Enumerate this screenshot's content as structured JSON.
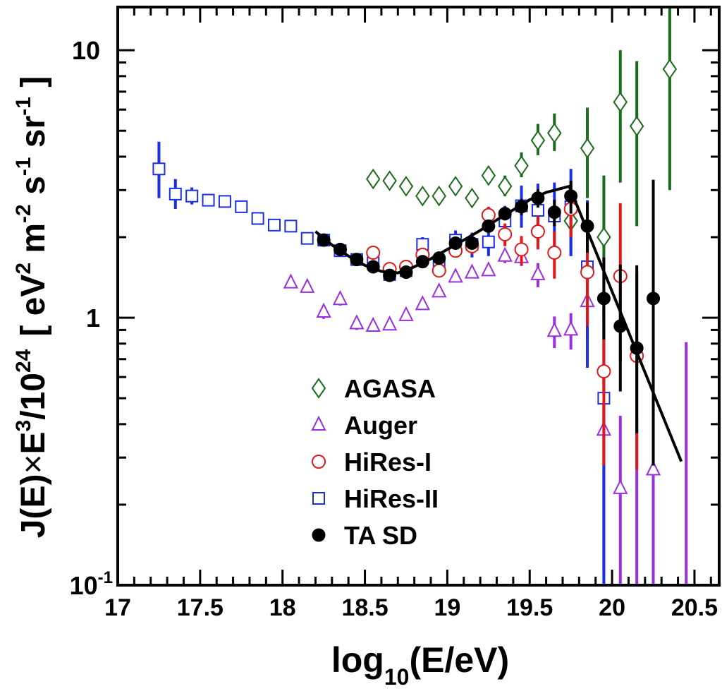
{
  "chart_data": {
    "type": "scatter",
    "x_tick_labels": [
      "17",
      "17.5",
      "18",
      "18.5",
      "19",
      "19.5",
      "20",
      "20.5"
    ],
    "x_ticks": [
      17,
      17.5,
      18,
      18.5,
      19,
      19.5,
      20,
      20.5
    ],
    "y_tick_labels": {
      "t10": "10",
      "t1": "1",
      "t01_base": "10",
      "t01_exp": "-1"
    },
    "y_ticks": [
      0.1,
      1,
      10
    ],
    "xlabel": {
      "base": "log",
      "sub": "10",
      "rest": "(E/eV)"
    },
    "ylabel": {
      "p1": "J(E)",
      "times": "×",
      "p2": "E",
      "p2_sup": "3",
      "p3": "/10",
      "p3_sup": "24",
      "p4": "[ eV",
      "p4_sup": "2",
      "p5": " m",
      "p5_sup": "-2",
      "p6": " s",
      "p6_sup": "-1",
      "p7": " sr",
      "p7_sup": "-1",
      "p8": " ]"
    },
    "xlim": [
      17,
      20.65
    ],
    "ylim": [
      0.1,
      14.5
    ],
    "yscale": "log",
    "legend_position": "lower-middle",
    "series": [
      {
        "name": "AGASA",
        "marker": "diamond",
        "filled": false,
        "color": "#1a6b1a",
        "x": [
          18.55,
          18.65,
          18.75,
          18.85,
          18.95,
          19.05,
          19.15,
          19.25,
          19.35,
          19.45,
          19.55,
          19.65,
          19.75,
          19.85,
          19.95,
          20.05,
          20.15,
          20.35
        ],
        "y": [
          3.3,
          3.25,
          3.1,
          2.85,
          2.85,
          3.1,
          2.8,
          3.4,
          3.1,
          3.7,
          4.6,
          4.9,
          2.3,
          4.3,
          2.0,
          6.4,
          5.2,
          8.5
        ],
        "err_low": [
          0.05,
          0.05,
          0.05,
          0.05,
          0.05,
          0.05,
          0.1,
          0.2,
          0.25,
          0.35,
          0.55,
          0.7,
          0.6,
          1.5,
          1.0,
          3.2,
          3.0,
          5.5
        ],
        "err_high": [
          0.05,
          0.05,
          0.05,
          0.05,
          0.05,
          0.05,
          0.1,
          0.25,
          0.3,
          0.45,
          0.7,
          0.9,
          0.8,
          1.8,
          1.4,
          3.6,
          3.9,
          7.0
        ]
      },
      {
        "name": "Auger",
        "marker": "triangle",
        "filled": false,
        "color": "#9a2ee0",
        "x": [
          18.05,
          18.15,
          18.25,
          18.35,
          18.45,
          18.55,
          18.65,
          18.75,
          18.85,
          18.95,
          19.05,
          19.15,
          19.25,
          19.35,
          19.45,
          19.55,
          19.65,
          19.75,
          19.85,
          19.95,
          20.05,
          20.15,
          20.25,
          20.35
        ],
        "y": [
          1.35,
          1.3,
          1.05,
          1.17,
          0.95,
          0.93,
          0.94,
          1.02,
          1.12,
          1.25,
          1.42,
          1.47,
          1.5,
          1.7,
          1.68,
          1.45,
          0.89,
          0.9,
          1.15,
          0.38,
          0.23,
          null,
          0.27,
          null
        ],
        "err_low": [
          0.05,
          0.05,
          0.06,
          0.06,
          0.05,
          0.04,
          0.04,
          0.04,
          0.05,
          0.05,
          0.06,
          0.06,
          0.07,
          0.1,
          0.12,
          0.15,
          0.12,
          0.14,
          0.3,
          0.27,
          0.13,
          null,
          0.17,
          null
        ],
        "err_high": [
          0.05,
          0.05,
          0.06,
          0.06,
          0.05,
          0.04,
          0.04,
          0.04,
          0.05,
          0.05,
          0.06,
          0.06,
          0.07,
          0.1,
          0.12,
          0.15,
          0.12,
          0.14,
          0.35,
          0.3,
          0.2,
          null,
          0.25,
          null
        ],
        "upper_limits": [
          {
            "x": 20.15,
            "y_top": 0.42
          },
          {
            "x": 20.45,
            "y_top": 0.81
          }
        ]
      },
      {
        "name": "HiRes-I",
        "marker": "circle",
        "filled": false,
        "color": "#e01818",
        "x": [
          18.55,
          18.65,
          18.75,
          18.85,
          18.95,
          19.05,
          19.15,
          19.25,
          19.35,
          19.45,
          19.55,
          19.65,
          19.75,
          19.85,
          19.95,
          20.05,
          20.15
        ],
        "y": [
          1.75,
          1.52,
          1.55,
          1.72,
          1.5,
          1.78,
          1.85,
          2.42,
          2.05,
          1.8,
          2.1,
          1.75,
          2.55,
          1.48,
          0.63,
          1.43,
          0.72
        ],
        "err_low": [
          0.07,
          0.07,
          0.07,
          0.08,
          0.08,
          0.1,
          0.12,
          0.18,
          0.2,
          0.22,
          0.3,
          0.35,
          0.55,
          0.55,
          0.35,
          0.75,
          0.45
        ],
        "err_high": [
          0.07,
          0.07,
          0.07,
          0.08,
          0.08,
          0.1,
          0.12,
          0.18,
          0.2,
          0.22,
          0.3,
          0.35,
          0.6,
          0.7,
          0.45,
          1.25,
          0.75
        ]
      },
      {
        "name": "HiRes-II",
        "marker": "square",
        "filled": false,
        "color": "#1a2ee8",
        "x": [
          17.25,
          17.35,
          17.45,
          17.55,
          17.65,
          17.75,
          17.85,
          17.95,
          18.05,
          18.15,
          18.25,
          18.35,
          18.45,
          18.55,
          18.65,
          18.75,
          18.85,
          18.95,
          19.05,
          19.15,
          19.25,
          19.35,
          19.45,
          19.55,
          19.65,
          19.75,
          19.85,
          19.95,
          20.05
        ],
        "y": [
          3.6,
          2.9,
          2.85,
          2.75,
          2.72,
          2.6,
          2.35,
          2.22,
          2.2,
          1.98,
          1.95,
          1.78,
          1.65,
          1.6,
          1.45,
          1.5,
          1.88,
          1.6,
          1.95,
          1.88,
          1.92,
          2.3,
          2.62,
          2.52,
          2.4,
          2.6,
          1.55,
          0.5,
          null
        ],
        "err_low": [
          0.8,
          0.35,
          0.2,
          0.12,
          0.07,
          0.05,
          0.05,
          0.05,
          0.05,
          0.08,
          0.09,
          0.08,
          0.07,
          0.08,
          0.09,
          0.1,
          0.12,
          0.13,
          0.17,
          0.2,
          0.22,
          0.32,
          0.45,
          0.6,
          0.7,
          0.9,
          0.9,
          0.4,
          null
        ],
        "err_high": [
          0.95,
          0.4,
          0.22,
          0.13,
          0.07,
          0.05,
          0.05,
          0.05,
          0.05,
          0.08,
          0.09,
          0.08,
          0.07,
          0.08,
          0.09,
          0.1,
          0.12,
          0.13,
          0.17,
          0.2,
          0.22,
          0.32,
          0.5,
          0.65,
          0.8,
          1.0,
          1.2,
          0.6,
          null
        ]
      },
      {
        "name": "TA SD",
        "marker": "circle",
        "filled": true,
        "color": "#000000",
        "x": [
          18.25,
          18.35,
          18.45,
          18.55,
          18.65,
          18.75,
          18.85,
          18.95,
          19.05,
          19.15,
          19.25,
          19.35,
          19.45,
          19.55,
          19.65,
          19.75,
          19.85,
          19.95,
          20.05,
          20.15,
          20.25
        ],
        "y": [
          1.95,
          1.8,
          1.65,
          1.55,
          1.44,
          1.48,
          1.62,
          1.67,
          1.9,
          1.9,
          2.2,
          2.45,
          2.6,
          2.8,
          2.48,
          2.85,
          2.2,
          1.18,
          0.93,
          0.77,
          1.18
        ],
        "err_low": [
          0.06,
          0.05,
          0.05,
          0.05,
          0.05,
          0.05,
          0.06,
          0.06,
          0.08,
          0.09,
          0.11,
          0.14,
          0.18,
          0.22,
          0.28,
          0.4,
          0.45,
          0.35,
          0.4,
          0.4,
          0.9
        ],
        "err_high": [
          0.06,
          0.05,
          0.05,
          0.05,
          0.05,
          0.05,
          0.06,
          0.06,
          0.08,
          0.09,
          0.11,
          0.14,
          0.18,
          0.22,
          0.28,
          0.4,
          0.5,
          0.5,
          0.65,
          0.8,
          2.1
        ],
        "fit_line": {
          "x": [
            18.2,
            18.3,
            18.4,
            18.5,
            18.6,
            18.7,
            18.8,
            18.9,
            19.0,
            19.1,
            19.2,
            19.3,
            19.4,
            19.5,
            19.6,
            19.74,
            20.42
          ],
          "y": [
            2.1,
            1.87,
            1.7,
            1.57,
            1.49,
            1.47,
            1.55,
            1.66,
            1.8,
            1.95,
            2.12,
            2.32,
            2.53,
            2.76,
            2.94,
            3.1,
            0.29
          ]
        }
      }
    ]
  }
}
